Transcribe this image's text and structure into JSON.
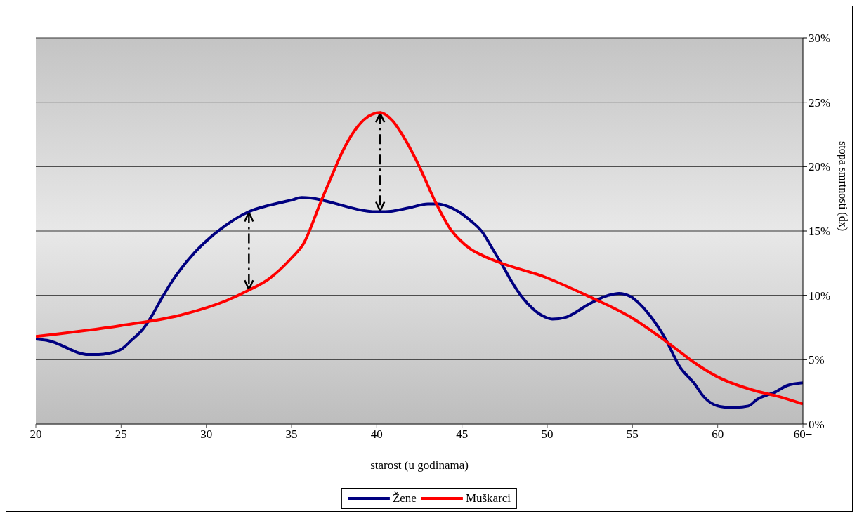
{
  "chart_data": {
    "type": "line",
    "xlabel": "starost (u godinama)",
    "ylabel": "stopa smrtnosti (dx)",
    "xlim": [
      20,
      65
    ],
    "xticks": [
      20,
      25,
      30,
      35,
      40,
      45,
      50,
      55,
      60,
      {
        "value": 65,
        "label": "60+"
      }
    ],
    "ylim": [
      0,
      30
    ],
    "yticks": [
      {
        "value": 0,
        "label": "0%"
      },
      {
        "value": 5,
        "label": "5%"
      },
      {
        "value": 10,
        "label": "10%"
      },
      {
        "value": 15,
        "label": "15%"
      },
      {
        "value": 20,
        "label": "20%"
      },
      {
        "value": 25,
        "label": "25%"
      },
      {
        "value": 30,
        "label": "30%"
      }
    ],
    "grid": "y",
    "legend": "bottom",
    "marker": "none",
    "line_style": "solid",
    "series": [
      {
        "name": "Žene",
        "color": "#000080",
        "x": [
          20,
          20.65,
          23.1,
          23.7,
          24.3,
          25,
          25.6,
          26.3,
          26.8,
          27.4,
          28,
          29.3,
          29.9,
          31.1,
          32.5,
          33.7,
          35,
          35.6,
          40,
          40.5,
          41.9,
          43,
          43.6,
          44.2,
          44.8,
          45.5,
          46.2,
          46.8,
          47.3,
          47.9,
          48.5,
          49.2,
          49.9,
          50.3,
          51.1,
          51.7,
          52.3,
          53.6,
          54.2,
          54.9,
          55.2,
          56.1,
          56.9,
          57.8,
          58.6,
          59.2,
          59.8,
          60.5,
          61.1,
          61.8,
          62.3,
          63.4,
          64.1,
          65
        ],
        "values": [
          6.6,
          6.5,
          5.4,
          5.4,
          5.5,
          5.8,
          6.5,
          7.4,
          8.4,
          9.8,
          11.1,
          13.3,
          14.1,
          15.4,
          16.5,
          17,
          17.4,
          17.6,
          16.5,
          16.5,
          16.8,
          17.1,
          17.1,
          16.9,
          16.5,
          15.8,
          14.9,
          13.6,
          12.5,
          11.1,
          9.9,
          8.9,
          8.3,
          8.15,
          8.3,
          8.7,
          9.2,
          10,
          10.15,
          9.9,
          9.6,
          8.3,
          6.7,
          4.4,
          3.2,
          2.1,
          1.5,
          1.3,
          1.3,
          1.4,
          1.9,
          2.5,
          3,
          3.2
        ]
      },
      {
        "name": "Muškarci",
        "color": "#ff0000",
        "x": [
          20,
          25,
          28.6,
          31.2,
          32.5,
          33.7,
          35,
          35.7,
          36.7,
          37.4,
          38,
          38.6,
          39.3,
          40.2,
          40.9,
          41.8,
          42.5,
          43.5,
          44.4,
          44.8,
          45.5,
          46.2,
          47.1,
          49.9,
          52.3,
          54.9,
          57.4,
          58.6,
          59.8,
          62.3,
          63.4,
          65
        ],
        "values": [
          6.8,
          7.65,
          8.5,
          9.6,
          10.4,
          11.3,
          12.9,
          14,
          17.2,
          19.4,
          21.2,
          22.6,
          23.7,
          24.2,
          23.6,
          21.8,
          20,
          17.1,
          15,
          14.4,
          13.6,
          13.1,
          12.6,
          11.4,
          10,
          8.3,
          6,
          4.8,
          3.8,
          2.55,
          2.2,
          1.55
        ]
      }
    ]
  }
}
